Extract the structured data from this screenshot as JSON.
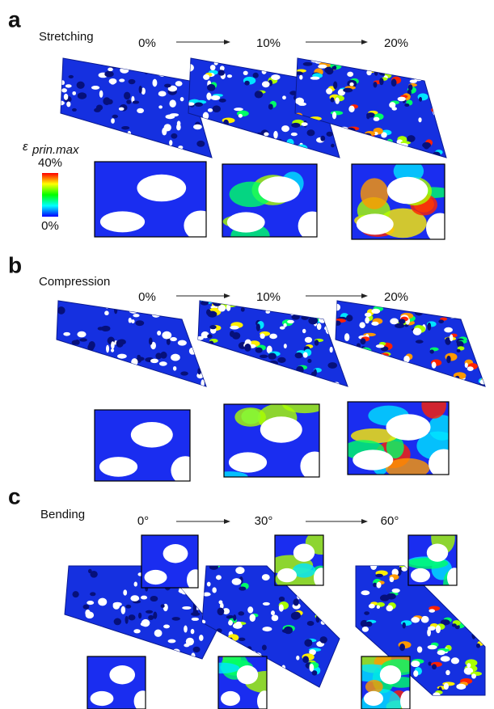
{
  "panels": [
    {
      "letter": "a",
      "title": "Stretching",
      "steps": [
        "0%",
        "10%",
        "20%"
      ]
    },
    {
      "letter": "b",
      "title": "Compression",
      "steps": [
        "0%",
        "10%",
        "20%"
      ]
    },
    {
      "letter": "c",
      "title": "Bending",
      "steps": [
        "0°",
        "30°",
        "60°"
      ]
    }
  ],
  "colorbar": {
    "symbol": "ε",
    "subscript": "prin.max",
    "max_label": "40%",
    "min_label": "0%"
  }
}
